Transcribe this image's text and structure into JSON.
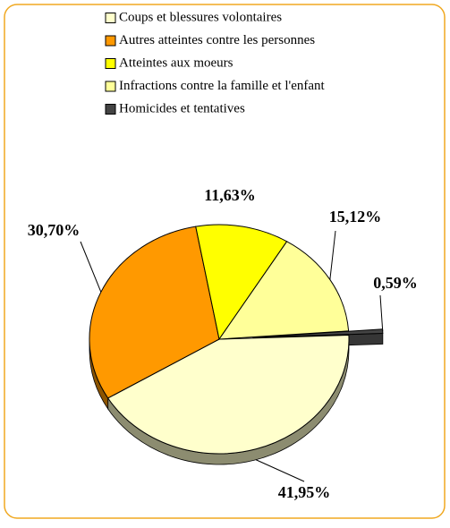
{
  "chart_data": {
    "type": "pie3d",
    "categories": [
      "Coups et blessures volontaires",
      "Autres atteintes contre les personnes",
      "Atteintes aux moeurs",
      "Infractions contre la famille et l'enfant",
      "Homicides et tentatives"
    ],
    "values": [
      41.95,
      30.7,
      11.63,
      15.12,
      0.59
    ],
    "value_labels": [
      "41,95%",
      "30,70%",
      "11,63%",
      "15,12%",
      "0,59%"
    ],
    "colors": [
      "#ffffcc",
      "#ff9900",
      "#ffff00",
      "#ffff99",
      "#444444"
    ],
    "exploded": [
      false,
      false,
      false,
      false,
      true
    ],
    "legend": "top"
  }
}
